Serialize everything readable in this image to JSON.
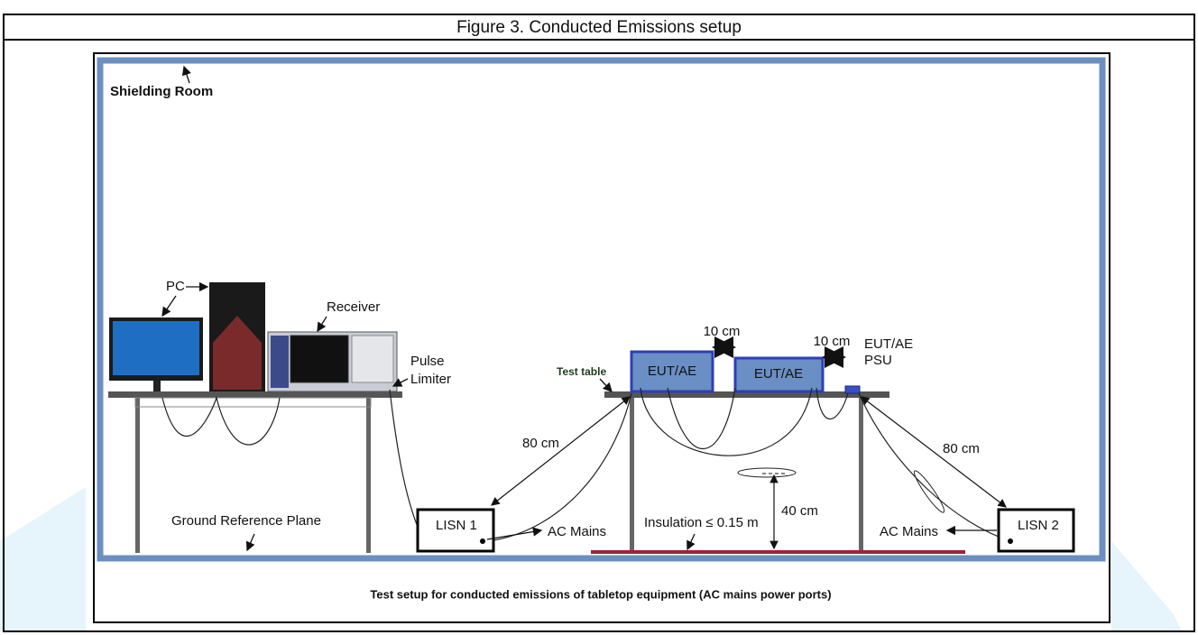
{
  "header": {
    "title": "Figure 3. Conducted Emissions setup"
  },
  "labels": {
    "shielding_room": "Shielding Room",
    "pc": "PC",
    "receiver": "Receiver",
    "pulse_limiter": [
      "Pulse",
      "Limiter"
    ],
    "test_table": "Test table",
    "eut_ae_1": "EUT/AE",
    "eut_ae_2": "EUT/AE",
    "gap_1": "10 cm",
    "gap_2": "10 cm",
    "eut_ae_psu": [
      "EUT/AE",
      "PSU"
    ],
    "distance_left": "80 cm",
    "distance_right": "80 cm",
    "ground_reference_plane": "Ground Reference Plane",
    "lisn_1": "LISN 1",
    "lisn_2": "LISN 2",
    "ac_mains_left": "AC Mains",
    "ac_mains_right": "AC Mains",
    "insulation": "Insulation ≤ 0.15 m",
    "height": "40 cm"
  },
  "caption": "Test setup for conducted emissions of tabletop equipment (AC mains power ports)"
}
